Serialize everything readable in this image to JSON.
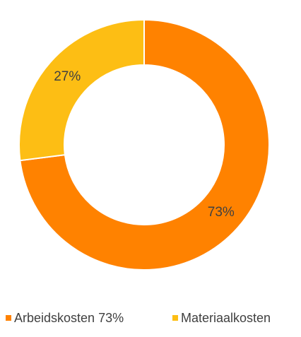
{
  "chart_data": {
    "type": "donut",
    "categories": [
      "Arbeidskosten 73%",
      "Materiaalkosten"
    ],
    "values": [
      73,
      27
    ],
    "value_labels": [
      "73%",
      "27%"
    ],
    "colors": [
      "#ff8200",
      "#fdbe14"
    ]
  }
}
